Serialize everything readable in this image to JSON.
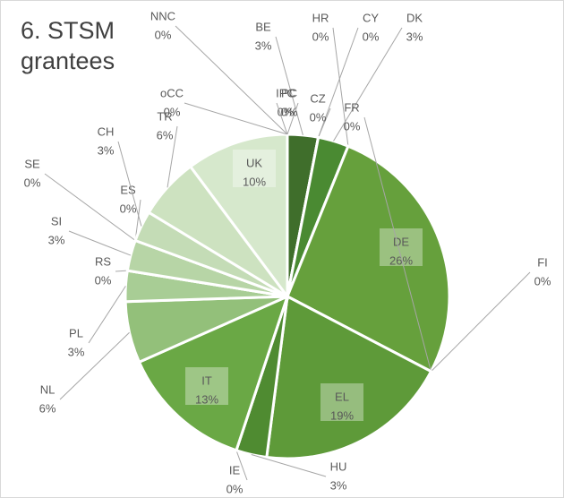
{
  "chart_data": {
    "type": "pie",
    "title": "6. STSM grantees",
    "categories": [
      "BE",
      "CY",
      "CZ",
      "DK",
      "HR",
      "DE",
      "FI",
      "FR",
      "EL",
      "HU",
      "IE",
      "IT",
      "NL",
      "PL",
      "RS",
      "SI",
      "ES",
      "SE",
      "CH",
      "TR",
      "UK",
      "oCC",
      "NNC",
      "IPC",
      "PC"
    ],
    "values": [
      3,
      0,
      0,
      3,
      0,
      26,
      0,
      0,
      19,
      3,
      0,
      13,
      6,
      3,
      0,
      3,
      0,
      0,
      3,
      6,
      10,
      0,
      0,
      0,
      0
    ],
    "value_labels": [
      "3%",
      "0%",
      "0%",
      "3%",
      "0%",
      "26%",
      "0%",
      "0%",
      "19%",
      "3%",
      "0%",
      "13%",
      "6%",
      "3%",
      "0%",
      "3%",
      "0%",
      "0%",
      "3%",
      "6%",
      "10%",
      "0%",
      "0%",
      "0%",
      "0%"
    ],
    "colors": [
      "#3f6e2b",
      "#416f2c",
      "#436f2d",
      "#4a8a32",
      "#4c8b33",
      "#66a03c",
      "#66a03c",
      "#66a03c",
      "#5e9a39",
      "#4f8b31",
      "#5a9636",
      "#6aa845",
      "#93c07a",
      "#a8cd95",
      "#b1d19f",
      "#b7d5a6",
      "#bdd8ad",
      "#c1dab2",
      "#c4dcb6",
      "#cde2c0",
      "#d6e8cc",
      "#d6e8cc",
      "#d6e8cc",
      "#d6e8cc",
      "#d6e8cc"
    ]
  }
}
